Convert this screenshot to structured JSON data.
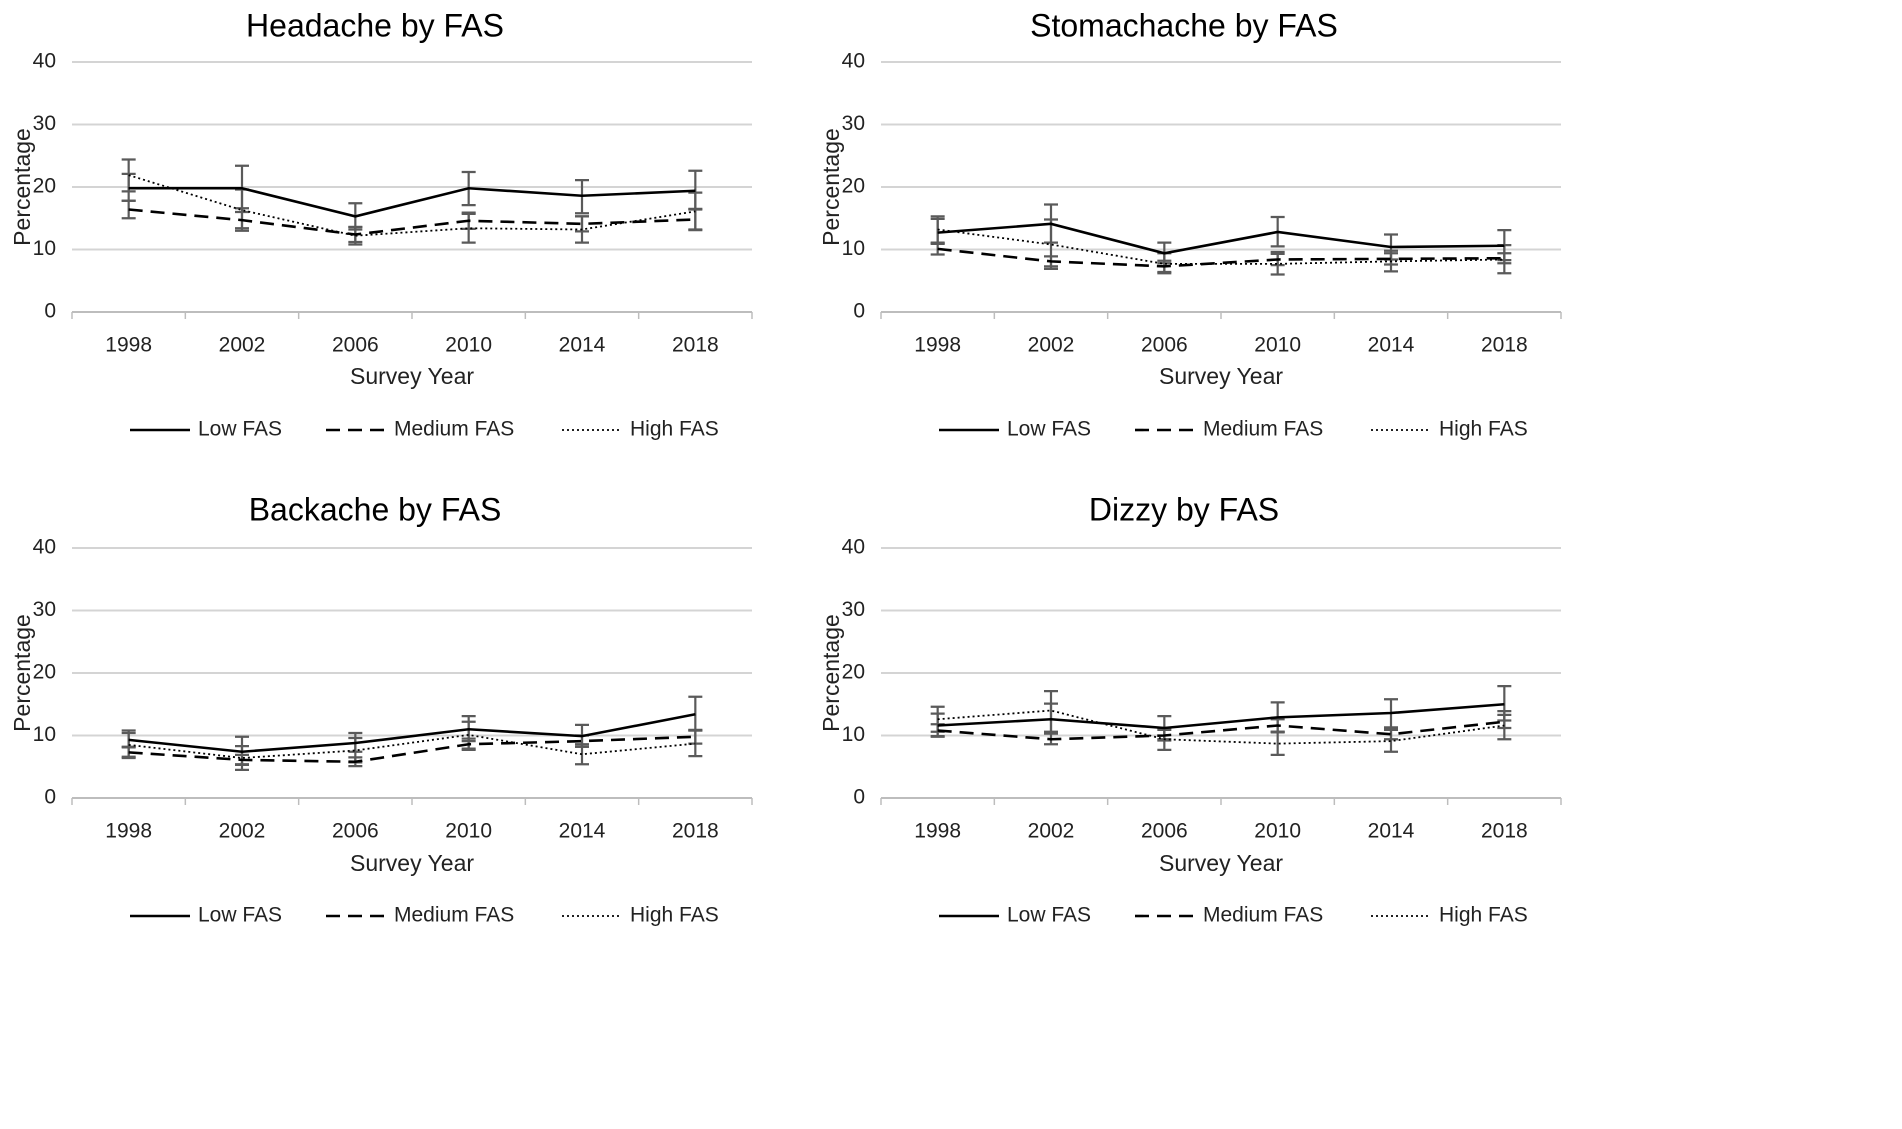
{
  "chart_data": [
    {
      "type": "line",
      "title": "Headache by FAS",
      "xlabel": "Survey Year",
      "ylabel": "Percentage",
      "categories": [
        "1998",
        "2002",
        "2006",
        "2010",
        "2014",
        "2018"
      ],
      "ylim": [
        0,
        40
      ],
      "yticks": [
        0,
        10,
        20,
        30,
        40
      ],
      "grid": true,
      "legend": "bottom",
      "series": [
        {
          "name": "Low FAS",
          "style": "solid",
          "values": [
            19.8,
            19.8,
            15.3,
            19.8,
            18.6,
            19.4
          ],
          "error_low": [
            17.8,
            16.6,
            13.2,
            17.1,
            15.8,
            16.5
          ],
          "error_high": [
            22.1,
            23.4,
            17.4,
            22.4,
            21.1,
            22.6
          ]
        },
        {
          "name": "Medium FAS",
          "style": "dashed",
          "values": [
            16.4,
            14.7,
            12.4,
            14.6,
            14.1,
            14.8
          ],
          "error_low": [
            15.0,
            13.4,
            11.2,
            13.3,
            12.9,
            13.2
          ],
          "error_high": [
            17.8,
            16.0,
            13.6,
            15.9,
            15.3,
            16.4
          ]
        },
        {
          "name": "High FAS",
          "style": "dotted",
          "values": [
            21.9,
            16.3,
            12.2,
            13.4,
            13.2,
            16.1
          ],
          "error_low": [
            19.3,
            13.0,
            10.8,
            11.1,
            11.1,
            13.1
          ],
          "error_high": [
            24.4,
            19.6,
            13.6,
            15.7,
            15.3,
            19.1
          ]
        }
      ]
    },
    {
      "type": "line",
      "title": "Stomachache by FAS",
      "xlabel": "Survey Year",
      "ylabel": "Percentage",
      "categories": [
        "1998",
        "2002",
        "2006",
        "2010",
        "2014",
        "2018"
      ],
      "ylim": [
        0,
        40
      ],
      "yticks": [
        0,
        10,
        20,
        30,
        40
      ],
      "grid": true,
      "legend": "bottom",
      "series": [
        {
          "name": "Low FAS",
          "style": "solid",
          "values": [
            12.7,
            14.1,
            9.4,
            12.8,
            10.4,
            10.6
          ],
          "error_low": [
            10.9,
            11.1,
            7.8,
            10.5,
            8.4,
            8.3
          ],
          "error_high": [
            14.9,
            17.2,
            11.1,
            15.2,
            12.4,
            13.1
          ]
        },
        {
          "name": "Medium FAS",
          "style": "dashed",
          "values": [
            10.1,
            8.1,
            7.3,
            8.4,
            8.5,
            8.6
          ],
          "error_low": [
            9.2,
            7.3,
            6.4,
            7.5,
            7.6,
            7.8
          ],
          "error_high": [
            11.0,
            8.9,
            8.2,
            9.3,
            9.4,
            9.4
          ]
        },
        {
          "name": "High FAS",
          "style": "dotted",
          "values": [
            13.2,
            10.8,
            7.7,
            7.7,
            8.1,
            8.4
          ],
          "error_low": [
            11.1,
            6.9,
            6.2,
            6.0,
            6.5,
            6.2
          ],
          "error_high": [
            15.3,
            14.8,
            9.4,
            9.6,
            9.8,
            10.7
          ]
        }
      ]
    },
    {
      "type": "line",
      "title": "Backache by FAS",
      "xlabel": "Survey Year",
      "ylabel": "Percentage",
      "categories": [
        "1998",
        "2002",
        "2006",
        "2010",
        "2014",
        "2018"
      ],
      "ylim": [
        0,
        40
      ],
      "yticks": [
        0,
        10,
        20,
        30,
        40
      ],
      "grid": true,
      "legend": "bottom",
      "series": [
        {
          "name": "Low FAS",
          "style": "solid",
          "values": [
            9.3,
            7.4,
            8.8,
            11.0,
            9.9,
            13.4
          ],
          "error_low": [
            8.1,
            5.4,
            7.4,
            9.1,
            8.2,
            10.8
          ],
          "error_high": [
            10.8,
            9.8,
            10.4,
            13.1,
            11.7,
            16.2
          ]
        },
        {
          "name": "Medium FAS",
          "style": "dashed",
          "values": [
            7.3,
            6.1,
            5.8,
            8.6,
            9.1,
            9.8
          ],
          "error_low": [
            6.4,
            5.3,
            5.1,
            7.7,
            8.2,
            8.7
          ],
          "error_high": [
            8.2,
            6.9,
            6.5,
            9.5,
            10.0,
            10.9
          ]
        },
        {
          "name": "High FAS",
          "style": "dotted",
          "values": [
            8.5,
            6.4,
            7.6,
            10.1,
            7.0,
            8.7
          ],
          "error_low": [
            6.6,
            4.5,
            5.7,
            7.9,
            5.4,
            6.7
          ],
          "error_high": [
            10.4,
            8.3,
            9.6,
            12.2,
            8.6,
            10.8
          ]
        }
      ]
    },
    {
      "type": "line",
      "title": "Dizzy by FAS",
      "xlabel": "Survey Year",
      "ylabel": "Percentage",
      "categories": [
        "1998",
        "2002",
        "2006",
        "2010",
        "2014",
        "2018"
      ],
      "ylim": [
        0,
        40
      ],
      "yticks": [
        0,
        10,
        20,
        30,
        40
      ],
      "grid": true,
      "legend": "bottom",
      "series": [
        {
          "name": "Low FAS",
          "style": "solid",
          "values": [
            11.6,
            12.6,
            11.2,
            12.9,
            13.6,
            15.0
          ],
          "error_low": [
            9.8,
            10.4,
            9.4,
            10.6,
            11.3,
            12.4
          ],
          "error_high": [
            13.5,
            15.1,
            13.1,
            15.3,
            15.8,
            17.9
          ]
        },
        {
          "name": "Medium FAS",
          "style": "dashed",
          "values": [
            10.8,
            9.4,
            10.0,
            11.6,
            10.2,
            12.2
          ],
          "error_low": [
            9.9,
            8.6,
            9.2,
            10.5,
            9.4,
            11.2
          ],
          "error_high": [
            11.8,
            10.3,
            10.9,
            12.6,
            11.1,
            13.3
          ]
        },
        {
          "name": "High FAS",
          "style": "dotted",
          "values": [
            12.6,
            14.0,
            9.4,
            8.7,
            9.1,
            11.6
          ],
          "error_low": [
            10.6,
            10.6,
            7.7,
            6.9,
            7.4,
            9.4
          ],
          "error_high": [
            14.6,
            17.1,
            11.2,
            10.6,
            10.9,
            13.9
          ]
        }
      ]
    }
  ]
}
